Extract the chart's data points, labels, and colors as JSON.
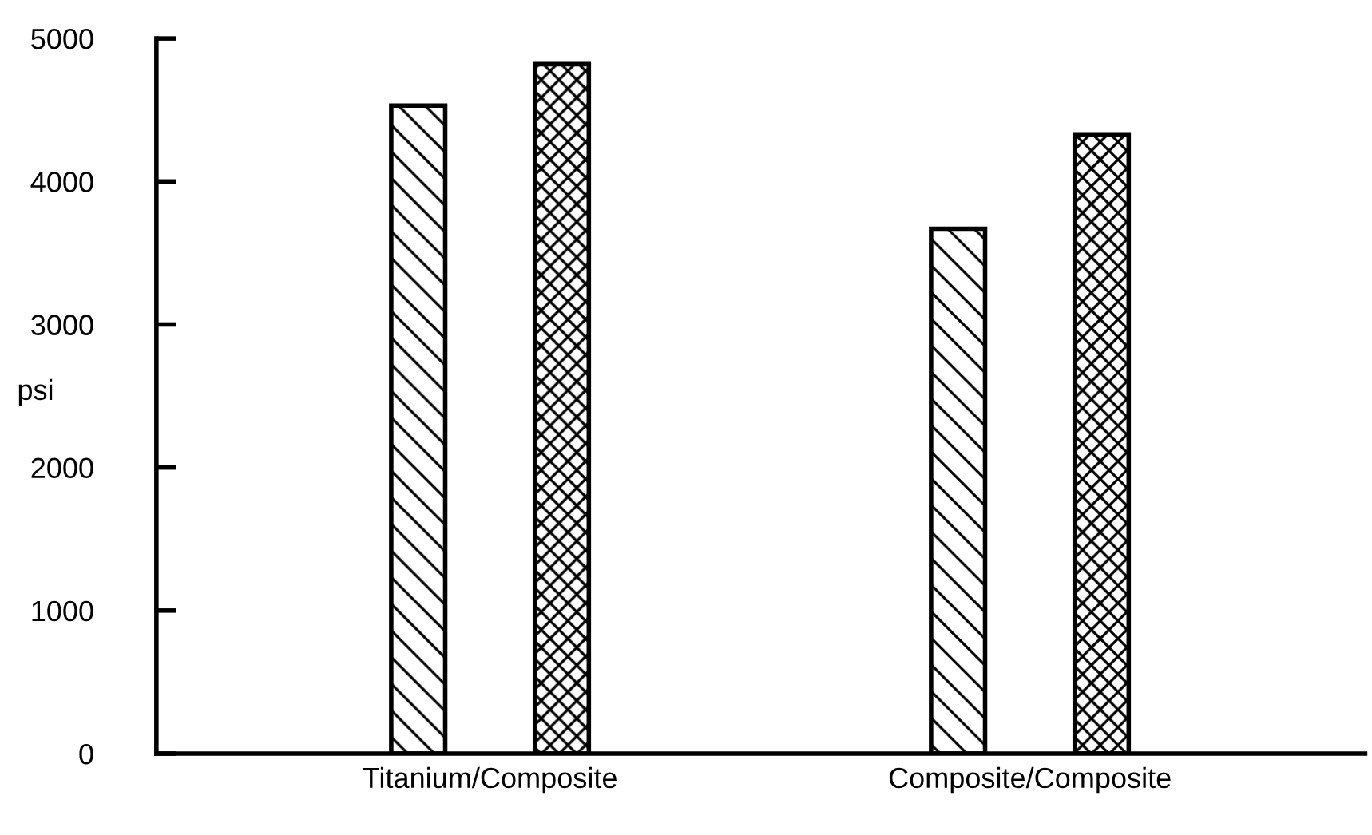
{
  "chart_data": {
    "type": "bar",
    "ylabel": "psi",
    "categories": [
      "Titanium/Composite",
      "Composite/Composite"
    ],
    "series": [
      {
        "color": "#000000",
        "values": [
          4530,
          3670
        ]
      },
      {
        "color": "#000000",
        "values": [
          4820,
          4330
        ]
      }
    ],
    "ylim": [
      0,
      5000
    ],
    "yticks": [
      0,
      1000,
      2000,
      3000,
      4000,
      5000
    ],
    "grid": false
  }
}
